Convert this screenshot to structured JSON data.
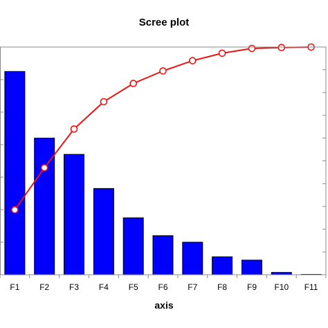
{
  "chart_data": {
    "type": "bar",
    "title": "Scree plot",
    "xlabel": "axis",
    "ylabel": "",
    "categories": [
      "F1",
      "F2",
      "F3",
      "F4",
      "F5",
      "F6",
      "F7",
      "F8",
      "F9",
      "F10",
      "F11"
    ],
    "left_ylim": [
      0,
      7
    ],
    "right_ylim": [
      0,
      100
    ],
    "grid": false,
    "legend": "none",
    "series": [
      {
        "type": "bar",
        "axis": "left",
        "color": "#0000ff",
        "values": [
          6.25,
          4.2,
          3.7,
          2.65,
          1.75,
          1.2,
          1.0,
          0.55,
          0.45,
          0.07,
          0.01
        ]
      },
      {
        "type": "line",
        "axis": "right",
        "color": "#ee1111",
        "marker": "open-circle",
        "values": [
          28.5,
          47.0,
          64.0,
          76.0,
          84.0,
          89.5,
          94.0,
          97.3,
          99.4,
          99.8,
          100.0
        ]
      }
    ]
  }
}
